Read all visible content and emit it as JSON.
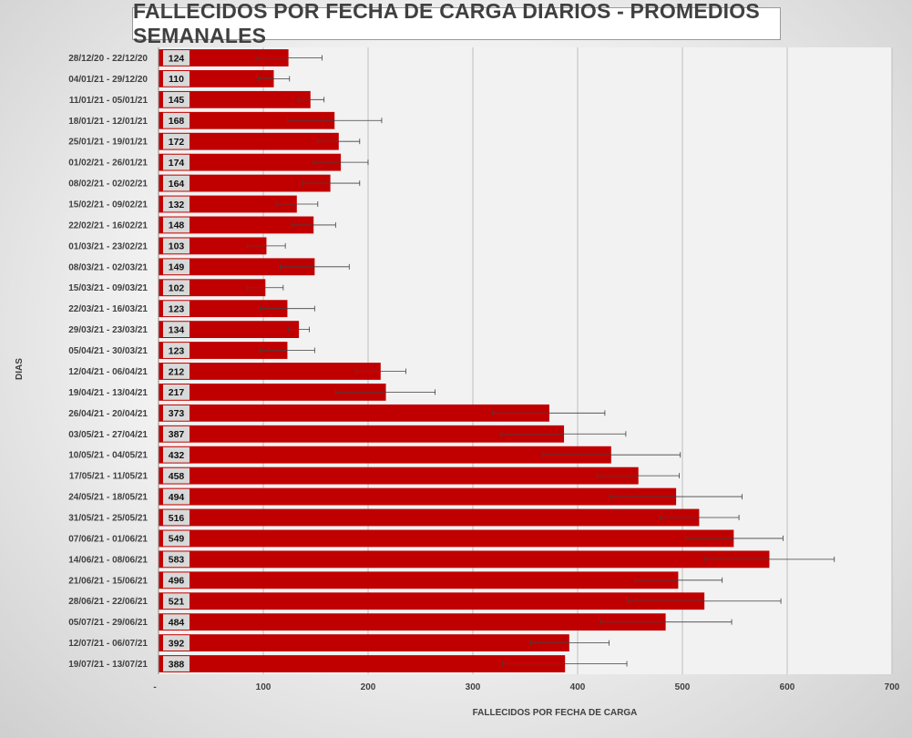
{
  "chart_data": {
    "type": "bar",
    "orientation": "horizontal",
    "title": "FALLECIDOS POR FECHA DE CARGA DIARIOS - PROMEDIOS SEMANALES",
    "xlabel": "FALLECIDOS POR FECHA DE CARGA",
    "ylabel": "DIAS",
    "xlim": [
      0,
      700
    ],
    "x_ticks": [
      "-",
      "100",
      "200",
      "300",
      "400",
      "500",
      "600",
      "700"
    ],
    "grid": true,
    "bar_color": "#C00000",
    "categories": [
      "28/12/20 - 22/12/20",
      "04/01/21 - 29/12/20",
      "11/01/21 - 05/01/21",
      "18/01/21 - 12/01/21",
      "25/01/21 - 19/01/21",
      "01/02/21 - 26/01/21",
      "08/02/21 - 02/02/21",
      "15/02/21 - 09/02/21",
      "22/02/21 - 16/02/21",
      "01/03/21 - 23/02/21",
      "08/03/21 - 02/03/21",
      "15/03/21 - 09/03/21",
      "22/03/21 - 16/03/21",
      "29/03/21 - 23/03/21",
      "05/04/21 - 30/03/21",
      "12/04/21 - 06/04/21",
      "19/04/21 - 13/04/21",
      "26/04/21 - 20/04/21",
      "03/05/21 - 27/04/21",
      "10/05/21 - 04/05/21",
      "17/05/21 - 11/05/21",
      "24/05/21 - 18/05/21",
      "31/05/21 - 25/05/21",
      "07/06/21 - 01/06/21",
      "14/06/21 - 08/06/21",
      "21/06/21 - 15/06/21",
      "28/06/21 - 22/06/21",
      "05/07/21 - 29/06/21",
      "12/07/21 - 06/07/21",
      "19/07/21 - 13/07/21"
    ],
    "values": [
      124,
      110,
      145,
      168,
      172,
      174,
      164,
      132,
      148,
      103,
      149,
      102,
      123,
      134,
      123,
      212,
      217,
      373,
      387,
      432,
      458,
      494,
      516,
      549,
      583,
      496,
      521,
      484,
      392,
      388
    ],
    "error_low": [
      93,
      95,
      133,
      123,
      152,
      148,
      137,
      112,
      127,
      85,
      116,
      85,
      97,
      124,
      97,
      188,
      169,
      319,
      327,
      367,
      419,
      431,
      479,
      503,
      521,
      455,
      448,
      422,
      355,
      328
    ],
    "error_high": [
      156,
      125,
      158,
      213,
      192,
      200,
      192,
      152,
      169,
      121,
      182,
      119,
      149,
      144,
      149,
      236,
      264,
      426,
      446,
      498,
      497,
      557,
      554,
      596,
      645,
      538,
      594,
      547,
      430,
      447
    ]
  }
}
